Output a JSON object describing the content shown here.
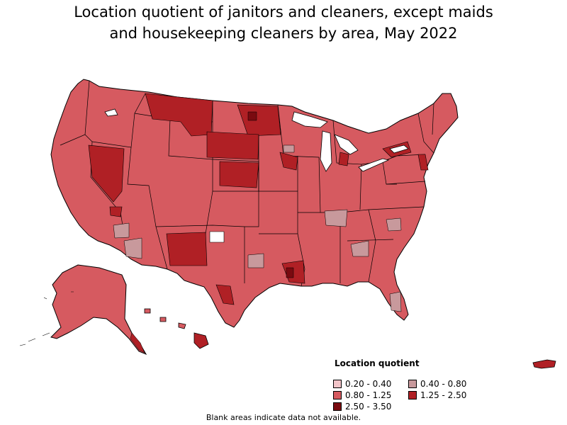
{
  "title_line1": "Location quotient of janitors and cleaners, except maids",
  "title_line2": "and housekeeping cleaners by area, May 2022",
  "legend": {
    "title": "Location quotient",
    "items": [
      {
        "label": "0.20 - 0.40",
        "color": "#f2c4c8"
      },
      {
        "label": "0.40 - 0.80",
        "color": "#c8999c"
      },
      {
        "label": "0.80 - 1.25",
        "color": "#d65a60"
      },
      {
        "label": "1.25 - 2.50",
        "color": "#b02025"
      },
      {
        "label": "2.50 - 3.50",
        "color": "#7a0a10"
      }
    ]
  },
  "footnote": "Blank areas indicate data not available.",
  "colors": {
    "base": "#d65a60",
    "high": "#b02025",
    "veryhigh": "#7a0a10",
    "low": "#c8999c",
    "verylow": "#f2c4c8",
    "border": "#000000",
    "water": "#ffffff"
  }
}
